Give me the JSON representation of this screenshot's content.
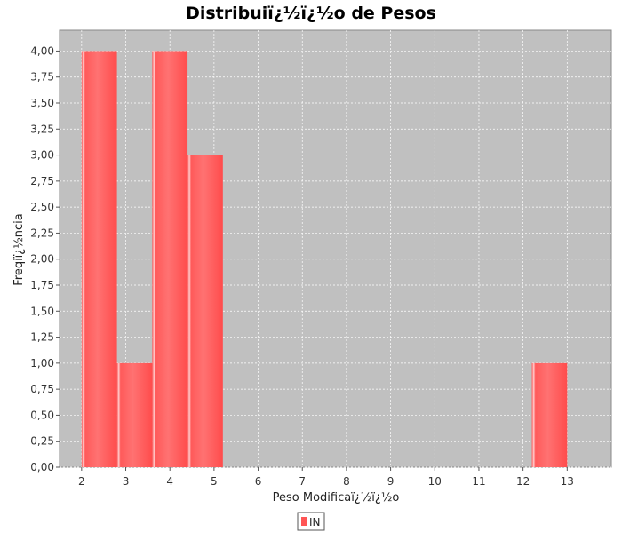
{
  "chart_data": {
    "type": "bar",
    "title": "Distribuiï¿½ï¿½o de Pesos",
    "xlabel": "Peso Modificaï¿½ï¿½o",
    "ylabel": "Freqiï¿½ncia",
    "xlim": [
      1.5,
      14.0
    ],
    "ylim": [
      0,
      4.2
    ],
    "x_ticks": [
      2,
      3,
      4,
      5,
      6,
      7,
      8,
      9,
      10,
      11,
      12,
      13
    ],
    "y_ticks": [
      "0,00",
      "0,25",
      "0,50",
      "0,75",
      "1,00",
      "1,25",
      "1,50",
      "1,75",
      "2,00",
      "2,25",
      "2,50",
      "2,75",
      "3,00",
      "3,25",
      "3,50",
      "3,75",
      "4,00"
    ],
    "grid": true,
    "legend_position": "bottom-center",
    "series": [
      {
        "name": "IN",
        "color": "#ff5555",
        "bins": [
          {
            "x0": 2.0,
            "x1": 2.8,
            "value": 4
          },
          {
            "x0": 2.8,
            "x1": 3.6,
            "value": 1
          },
          {
            "x0": 3.6,
            "x1": 4.4,
            "value": 4
          },
          {
            "x0": 4.4,
            "x1": 5.2,
            "value": 3
          },
          {
            "x0": 12.2,
            "x1": 13.0,
            "value": 1
          }
        ]
      }
    ]
  }
}
